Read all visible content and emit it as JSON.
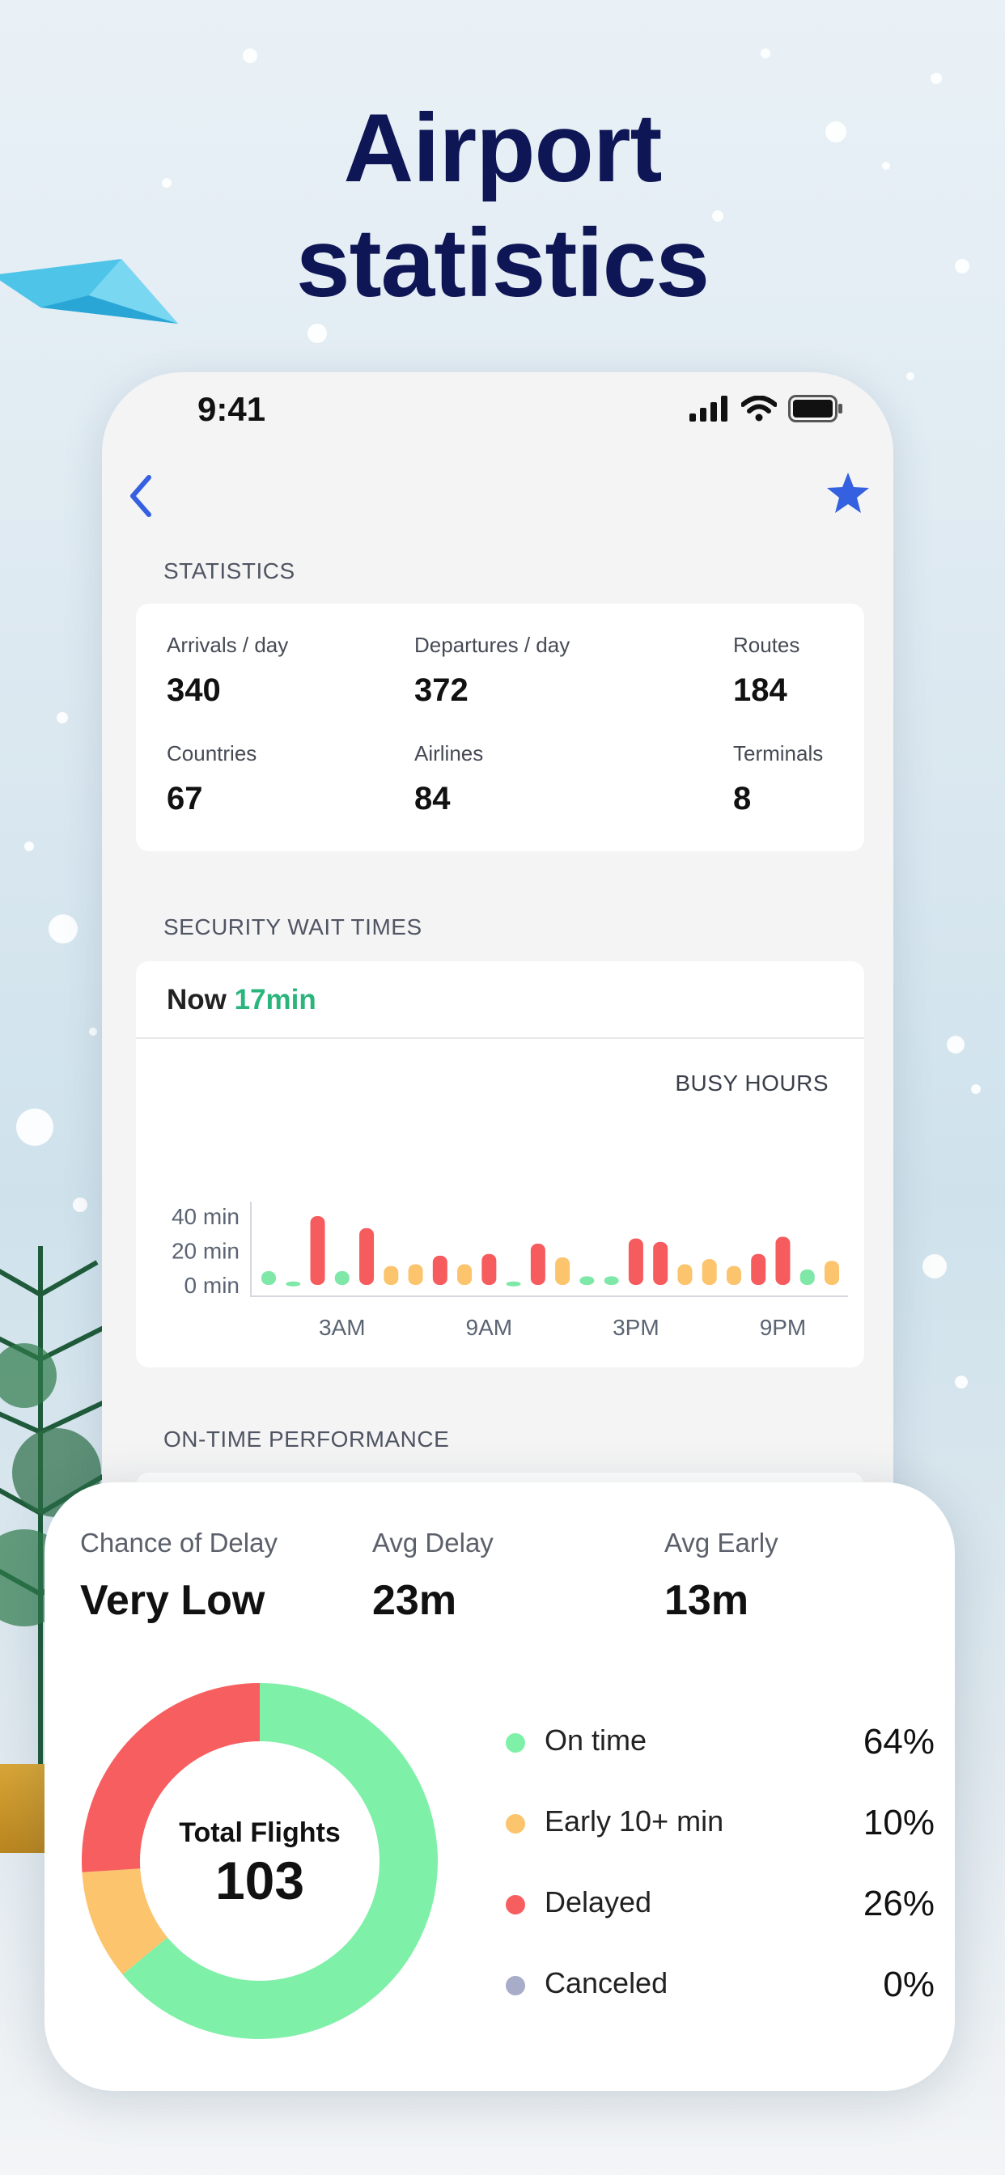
{
  "headline": {
    "line1": "Airport",
    "line2": "statistics"
  },
  "status_bar": {
    "time": "9:41"
  },
  "nav": {
    "back_icon": "chevron-left-icon",
    "favorite_icon": "star-icon"
  },
  "statistics": {
    "section_title": "STATISTICS",
    "items": [
      {
        "label": "Arrivals / day",
        "value": "340"
      },
      {
        "label": "Departures / day",
        "value": "372"
      },
      {
        "label": "Routes",
        "value": "184"
      },
      {
        "label": "Countries",
        "value": "67"
      },
      {
        "label": "Airlines",
        "value": "84"
      },
      {
        "label": "Terminals",
        "value": "8"
      }
    ]
  },
  "security": {
    "section_title": "SECURITY WAIT TIMES",
    "now_label": "Now",
    "now_value": "17min",
    "busy_label": "BUSY HOURS"
  },
  "chart_data": {
    "type": "bar",
    "title": "BUSY HOURS",
    "y_ticks": [
      "40 min",
      "20 min",
      "0 min"
    ],
    "x_ticks": [
      "3AM",
      "9AM",
      "3PM",
      "9PM"
    ],
    "ylim": [
      0,
      40
    ],
    "categories": [
      "0",
      "1",
      "2",
      "3",
      "4",
      "5",
      "6",
      "7",
      "8",
      "9",
      "10",
      "11",
      "12",
      "13",
      "14",
      "15",
      "16",
      "17",
      "18",
      "19",
      "20",
      "21",
      "22",
      "23"
    ],
    "values": [
      8,
      2,
      40,
      8,
      33,
      11,
      12,
      17,
      12,
      18,
      2,
      24,
      16,
      5,
      5,
      27,
      25,
      12,
      15,
      11,
      18,
      28,
      9,
      14
    ],
    "bar_colors": [
      "#7fe8a8",
      "#7fe8a8",
      "#f65b5e",
      "#7fe8a8",
      "#f65b5e",
      "#fbc46d",
      "#fbc46d",
      "#f65b5e",
      "#fbc46d",
      "#f65b5e",
      "#7fe8a8",
      "#f65b5e",
      "#fbc46d",
      "#7fe8a8",
      "#7fe8a8",
      "#f65b5e",
      "#f65b5e",
      "#fbc46d",
      "#fbc46d",
      "#fbc46d",
      "#f65b5e",
      "#f65b5e",
      "#7fe8a8",
      "#fbc46d"
    ],
    "grid": false
  },
  "on_time": {
    "section_title": "ON-TIME PERFORMANCE",
    "chance_label": "Chance of Delay",
    "chance_value": "Very Low",
    "avg_delay_label": "Avg Delay",
    "avg_delay_value": "23m",
    "avg_early_label": "Avg Early",
    "avg_early_value": "13m",
    "total_label": "Total Flights",
    "total_value": "103",
    "breakdown": [
      {
        "label": "On time",
        "pct": "64%",
        "value": 64,
        "color": "#7ff0a8"
      },
      {
        "label": "Early 10+ min",
        "pct": "10%",
        "value": 10,
        "color": "#fbc46d"
      },
      {
        "label": "Delayed",
        "pct": "26%",
        "value": 26,
        "color": "#f75e5f"
      },
      {
        "label": "Canceled",
        "pct": "0%",
        "value": 0,
        "color": "#a7acc8"
      }
    ]
  }
}
